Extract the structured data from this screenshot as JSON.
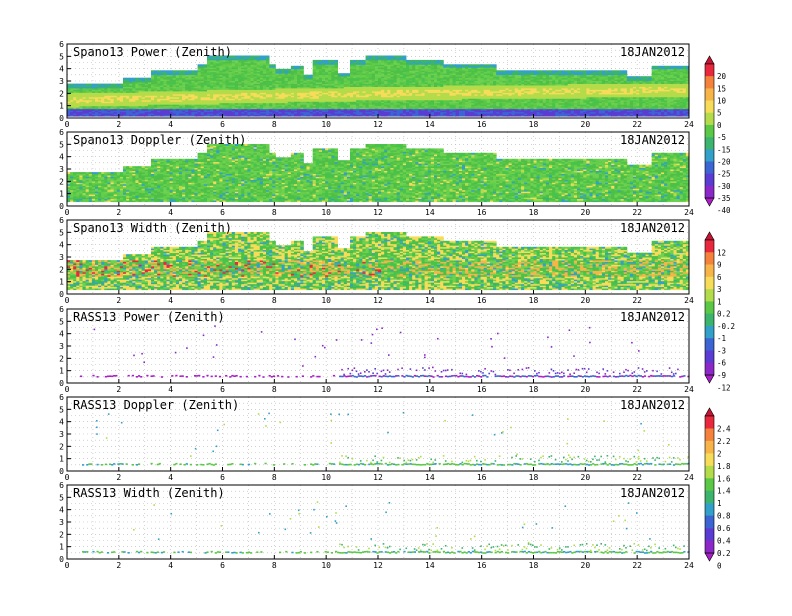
{
  "chart_data": [
    {
      "type": "heatmap",
      "title": "Spano13 Power (Zenith)",
      "date": "18JAN2012",
      "xlim": [
        0,
        24
      ],
      "ylim": [
        0,
        6
      ],
      "x_ticks": [
        "0",
        "2",
        "4",
        "6",
        "8",
        "10",
        "12",
        "14",
        "16",
        "18",
        "20",
        "22",
        "24"
      ],
      "y_ticks": [
        "0",
        "1",
        "2",
        "3",
        "4",
        "5",
        "6"
      ],
      "grid": true,
      "colorbar": "power"
    },
    {
      "type": "heatmap",
      "title": "Spano13 Doppler (Zenith)",
      "date": "18JAN2012",
      "xlim": [
        0,
        24
      ],
      "ylim": [
        0,
        6
      ],
      "x_ticks": [
        "0",
        "2",
        "4",
        "6",
        "8",
        "10",
        "12",
        "14",
        "16",
        "18",
        "20",
        "22",
        "24"
      ],
      "y_ticks": [
        "0",
        "1",
        "2",
        "3",
        "4",
        "5",
        "6"
      ],
      "grid": true,
      "colorbar": "power"
    },
    {
      "type": "heatmap",
      "title": "Spano13 Width (Zenith)",
      "date": "18JAN2012",
      "xlim": [
        0,
        24
      ],
      "ylim": [
        0,
        6
      ],
      "x_ticks": [
        "0",
        "2",
        "4",
        "6",
        "8",
        "10",
        "12",
        "14",
        "16",
        "18",
        "20",
        "22",
        "24"
      ],
      "y_ticks": [
        "0",
        "1",
        "2",
        "3",
        "4",
        "5",
        "6"
      ],
      "grid": true,
      "colorbar": "mid"
    },
    {
      "type": "scatter",
      "title": "RASS13 Power (Zenith)",
      "date": "18JAN2012",
      "xlim": [
        0,
        24
      ],
      "ylim": [
        0,
        6
      ],
      "x_ticks": [
        "0",
        "2",
        "4",
        "6",
        "8",
        "10",
        "12",
        "14",
        "16",
        "18",
        "20",
        "22",
        "24"
      ],
      "y_ticks": [
        "0",
        "1",
        "2",
        "3",
        "4",
        "5",
        "6"
      ],
      "grid": true,
      "colorbar": "mid"
    },
    {
      "type": "scatter",
      "title": "RASS13 Doppler (Zenith)",
      "date": "18JAN2012",
      "xlim": [
        0,
        24
      ],
      "ylim": [
        0,
        6
      ],
      "x_ticks": [
        "0",
        "2",
        "4",
        "6",
        "8",
        "10",
        "12",
        "14",
        "16",
        "18",
        "20",
        "22",
        "24"
      ],
      "y_ticks": [
        "0",
        "1",
        "2",
        "3",
        "4",
        "5",
        "6"
      ],
      "grid": true,
      "colorbar": "low"
    },
    {
      "type": "scatter",
      "title": "RASS13 Width (Zenith)",
      "date": "18JAN2012",
      "xlim": [
        0,
        24
      ],
      "ylim": [
        0,
        6
      ],
      "x_ticks": [
        "0",
        "2",
        "4",
        "6",
        "8",
        "10",
        "12",
        "14",
        "16",
        "18",
        "20",
        "22",
        "24"
      ],
      "y_ticks": [
        "0",
        "1",
        "2",
        "3",
        "4",
        "5",
        "6"
      ],
      "grid": true,
      "colorbar": "low"
    }
  ],
  "colorbars": [
    {
      "id": "power",
      "labels": [
        "20",
        "15",
        "10",
        "5",
        "0",
        "-5",
        "-15",
        "-20",
        "-25",
        "-30",
        "-35",
        "-40"
      ],
      "colors": [
        "#c81432",
        "#e8283c",
        "#f5823c",
        "#f7b448",
        "#f7dc5a",
        "#b4dc4a",
        "#5ac846",
        "#3cb46e",
        "#32a0c8",
        "#3c64d2",
        "#5a3cd2",
        "#8c28c8",
        "#aa1ec8"
      ]
    },
    {
      "id": "mid",
      "labels": [
        "12",
        "9",
        "6",
        "3",
        "1",
        "0.2",
        "-0.2",
        "-1",
        "-3",
        "-6",
        "-9",
        "-12"
      ],
      "colors": [
        "#c81432",
        "#e8283c",
        "#f5823c",
        "#f7b448",
        "#f7dc5a",
        "#b4dc4a",
        "#5ac846",
        "#3cb46e",
        "#32a0c8",
        "#3c64d2",
        "#5a3cd2",
        "#8c28c8",
        "#aa1ec8"
      ]
    },
    {
      "id": "low",
      "labels": [
        "2.4",
        "2.2",
        "2",
        "1.8",
        "1.6",
        "1.4",
        "1",
        "0.8",
        "0.6",
        "0.4",
        "0.2",
        "0"
      ],
      "colors": [
        "#c81432",
        "#e8283c",
        "#f5823c",
        "#f7b448",
        "#f7dc5a",
        "#b4dc4a",
        "#5ac846",
        "#3cb46e",
        "#32a0c8",
        "#3c64d2",
        "#5a3cd2",
        "#8c28c8",
        "#aa1ec8"
      ]
    }
  ]
}
